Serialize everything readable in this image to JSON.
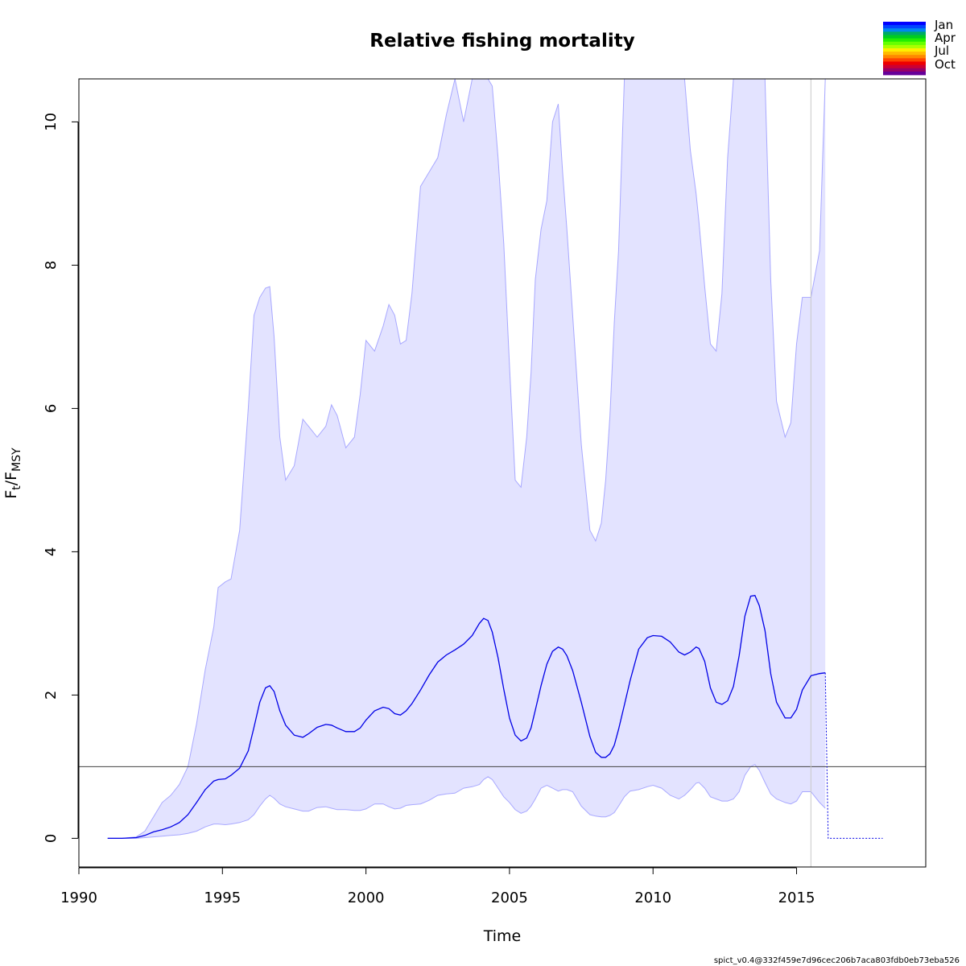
{
  "chart_data": {
    "type": "line",
    "title": "Relative fishing mortality",
    "xlabel": "Time",
    "ylabel": {
      "main": "F",
      "sub1": "t",
      "sep": "/F",
      "sub2": "MSY"
    },
    "xlim": [
      1990,
      2019.5
    ],
    "ylim": [
      -0.4,
      10.6
    ],
    "x_ticks": [
      1990,
      1995,
      2000,
      2005,
      2010,
      2015
    ],
    "y_ticks": [
      0,
      2,
      4,
      6,
      8,
      10
    ],
    "reference_line_y": 1,
    "vertical_line_x": 2015.5,
    "colors": {
      "estimate": "#0000e6",
      "ci_fill": "#e3e3ff",
      "ci_edge": "#a8a8ff",
      "reference": "#404040",
      "vline": "#c8c8c8"
    },
    "series": [
      {
        "role": "estimate",
        "x": [
          1991.0,
          1991.5,
          1992.0,
          1992.3,
          1992.6,
          1992.9,
          1993.2,
          1993.5,
          1993.8,
          1994.1,
          1994.4,
          1994.7,
          1994.85,
          1995.1,
          1995.3,
          1995.6,
          1995.9,
          1996.1,
          1996.3,
          1996.5,
          1996.65,
          1996.8,
          1997.0,
          1997.2,
          1997.5,
          1997.8,
          1998.0,
          1998.3,
          1998.6,
          1998.8,
          1999.0,
          1999.3,
          1999.6,
          1999.8,
          2000.0,
          2000.3,
          2000.6,
          2000.8,
          2001.0,
          2001.2,
          2001.4,
          2001.6,
          2001.9,
          2002.2,
          2002.5,
          2002.8,
          2003.1,
          2003.4,
          2003.7,
          2003.95,
          2004.1,
          2004.25,
          2004.4,
          2004.6,
          2004.8,
          2005.0,
          2005.2,
          2005.4,
          2005.6,
          2005.75,
          2005.9,
          2006.1,
          2006.3,
          2006.5,
          2006.7,
          2006.85,
          2007.0,
          2007.2,
          2007.5,
          2007.8,
          2008.0,
          2008.2,
          2008.35,
          2008.5,
          2008.65,
          2008.8,
          2009.0,
          2009.2,
          2009.5,
          2009.8,
          2010.0,
          2010.3,
          2010.6,
          2010.9,
          2011.1,
          2011.3,
          2011.5,
          2011.6,
          2011.8,
          2012.0,
          2012.2,
          2012.4,
          2012.6,
          2012.8,
          2013.0,
          2013.2,
          2013.4,
          2013.55,
          2013.7,
          2013.9,
          2014.1,
          2014.3,
          2014.6,
          2014.8,
          2015.0,
          2015.2,
          2015.5,
          2015.8,
          2016.0
        ],
        "y": [
          0.0,
          0.0,
          0.01,
          0.04,
          0.09,
          0.12,
          0.16,
          0.22,
          0.33,
          0.5,
          0.68,
          0.8,
          0.82,
          0.83,
          0.88,
          0.98,
          1.22,
          1.55,
          1.9,
          2.1,
          2.13,
          2.05,
          1.78,
          1.58,
          1.44,
          1.41,
          1.46,
          1.55,
          1.59,
          1.58,
          1.54,
          1.49,
          1.49,
          1.54,
          1.65,
          1.78,
          1.83,
          1.81,
          1.74,
          1.72,
          1.78,
          1.88,
          2.07,
          2.28,
          2.46,
          2.56,
          2.63,
          2.71,
          2.83,
          3.0,
          3.07,
          3.04,
          2.88,
          2.52,
          2.08,
          1.68,
          1.44,
          1.36,
          1.4,
          1.54,
          1.79,
          2.13,
          2.43,
          2.61,
          2.67,
          2.64,
          2.55,
          2.34,
          1.9,
          1.42,
          1.2,
          1.13,
          1.13,
          1.18,
          1.3,
          1.52,
          1.86,
          2.2,
          2.64,
          2.8,
          2.83,
          2.82,
          2.74,
          2.6,
          2.56,
          2.6,
          2.67,
          2.65,
          2.47,
          2.1,
          1.9,
          1.87,
          1.92,
          2.12,
          2.55,
          3.1,
          3.38,
          3.39,
          3.25,
          2.9,
          2.3,
          1.9,
          1.68,
          1.68,
          1.8,
          2.07,
          2.27,
          2.3,
          2.31
        ]
      },
      {
        "role": "upper_ci",
        "x": [
          1991.0,
          1991.5,
          1992.0,
          1992.3,
          1992.6,
          1992.9,
          1993.2,
          1993.5,
          1993.8,
          1994.1,
          1994.4,
          1994.7,
          1994.85,
          1995.1,
          1995.3,
          1995.6,
          1995.9,
          1996.1,
          1996.3,
          1996.5,
          1996.65,
          1996.8,
          1997.0,
          1997.2,
          1997.5,
          1997.8,
          1998.0,
          1998.3,
          1998.6,
          1998.8,
          1999.0,
          1999.3,
          1999.6,
          1999.8,
          2000.0,
          2000.3,
          2000.6,
          2000.8,
          2001.0,
          2001.2,
          2001.4,
          2001.6,
          2001.9,
          2002.2,
          2002.5,
          2002.8,
          2003.1,
          2003.4,
          2003.7,
          2003.95,
          2004.1,
          2004.25,
          2004.4,
          2004.6,
          2004.8,
          2005.0,
          2005.2,
          2005.4,
          2005.6,
          2005.75,
          2005.9,
          2006.1,
          2006.3,
          2006.5,
          2006.7,
          2006.85,
          2007.0,
          2007.2,
          2007.5,
          2007.8,
          2008.0,
          2008.2,
          2008.35,
          2008.5,
          2008.65,
          2008.8,
          2009.0,
          2009.2,
          2009.5,
          2009.8,
          2010.0,
          2010.3,
          2010.6,
          2010.9,
          2011.1,
          2011.3,
          2011.5,
          2011.6,
          2011.8,
          2012.0,
          2012.2,
          2012.4,
          2012.6,
          2012.8,
          2013.0,
          2013.2,
          2013.4,
          2013.55,
          2013.7,
          2013.9,
          2014.1,
          2014.3,
          2014.6,
          2014.8,
          2015.0,
          2015.2,
          2015.5,
          2015.8,
          2016.0
        ],
        "y": [
          0.0,
          0.0,
          0.02,
          0.1,
          0.3,
          0.5,
          0.6,
          0.75,
          1.0,
          1.6,
          2.35,
          2.95,
          3.5,
          3.58,
          3.62,
          4.3,
          6.0,
          7.3,
          7.55,
          7.68,
          7.7,
          7.0,
          5.6,
          5.0,
          5.2,
          5.85,
          5.75,
          5.6,
          5.75,
          6.05,
          5.9,
          5.45,
          5.6,
          6.2,
          6.95,
          6.8,
          7.15,
          7.45,
          7.3,
          6.9,
          6.95,
          7.6,
          9.1,
          9.3,
          9.5,
          10.1,
          10.6,
          10.0,
          10.6,
          10.6,
          10.6,
          10.6,
          10.5,
          9.5,
          8.3,
          6.6,
          5.0,
          4.9,
          5.6,
          6.5,
          7.8,
          8.5,
          8.9,
          10.0,
          10.25,
          9.3,
          8.5,
          7.3,
          5.5,
          4.3,
          4.15,
          4.4,
          5.0,
          5.9,
          7.2,
          8.2,
          10.6,
          10.6,
          10.6,
          10.6,
          10.6,
          10.6,
          10.6,
          10.6,
          10.6,
          9.6,
          9.0,
          8.6,
          7.7,
          6.9,
          6.8,
          7.6,
          9.5,
          10.6,
          10.6,
          10.6,
          10.6,
          10.6,
          10.6,
          10.6,
          7.8,
          6.1,
          5.6,
          5.8,
          6.9,
          7.55,
          7.55,
          8.2,
          10.6
        ]
      },
      {
        "role": "lower_ci",
        "x": [
          1991.0,
          1991.5,
          1992.0,
          1992.3,
          1992.6,
          1992.9,
          1993.2,
          1993.5,
          1993.8,
          1994.1,
          1994.4,
          1994.7,
          1994.85,
          1995.1,
          1995.3,
          1995.6,
          1995.9,
          1996.1,
          1996.3,
          1996.5,
          1996.65,
          1996.8,
          1997.0,
          1997.2,
          1997.5,
          1997.8,
          1998.0,
          1998.3,
          1998.6,
          1998.8,
          1999.0,
          1999.3,
          1999.6,
          1999.8,
          2000.0,
          2000.3,
          2000.6,
          2000.8,
          2001.0,
          2001.2,
          2001.4,
          2001.6,
          2001.9,
          2002.2,
          2002.5,
          2002.8,
          2003.1,
          2003.4,
          2003.7,
          2003.95,
          2004.1,
          2004.25,
          2004.4,
          2004.6,
          2004.8,
          2005.0,
          2005.2,
          2005.4,
          2005.6,
          2005.75,
          2005.9,
          2006.1,
          2006.3,
          2006.5,
          2006.7,
          2006.85,
          2007.0,
          2007.2,
          2007.5,
          2007.8,
          2008.0,
          2008.2,
          2008.35,
          2008.5,
          2008.65,
          2008.8,
          2009.0,
          2009.2,
          2009.5,
          2009.8,
          2010.0,
          2010.3,
          2010.6,
          2010.9,
          2011.1,
          2011.3,
          2011.5,
          2011.6,
          2011.8,
          2012.0,
          2012.2,
          2012.4,
          2012.6,
          2012.8,
          2013.0,
          2013.2,
          2013.4,
          2013.55,
          2013.7,
          2013.9,
          2014.1,
          2014.3,
          2014.6,
          2014.8,
          2015.0,
          2015.2,
          2015.5,
          2015.8,
          2016.0
        ],
        "y": [
          0.0,
          0.0,
          0.0,
          0.01,
          0.02,
          0.03,
          0.04,
          0.05,
          0.07,
          0.1,
          0.16,
          0.2,
          0.2,
          0.19,
          0.2,
          0.22,
          0.26,
          0.33,
          0.45,
          0.55,
          0.6,
          0.56,
          0.48,
          0.44,
          0.41,
          0.38,
          0.38,
          0.43,
          0.44,
          0.42,
          0.4,
          0.4,
          0.39,
          0.39,
          0.41,
          0.48,
          0.48,
          0.44,
          0.41,
          0.42,
          0.46,
          0.47,
          0.48,
          0.53,
          0.6,
          0.62,
          0.63,
          0.7,
          0.72,
          0.75,
          0.82,
          0.86,
          0.82,
          0.7,
          0.58,
          0.5,
          0.4,
          0.35,
          0.38,
          0.45,
          0.55,
          0.7,
          0.74,
          0.7,
          0.66,
          0.68,
          0.68,
          0.65,
          0.45,
          0.33,
          0.31,
          0.3,
          0.3,
          0.32,
          0.36,
          0.45,
          0.58,
          0.66,
          0.68,
          0.72,
          0.74,
          0.7,
          0.6,
          0.55,
          0.6,
          0.68,
          0.77,
          0.78,
          0.7,
          0.58,
          0.55,
          0.52,
          0.52,
          0.55,
          0.65,
          0.88,
          1.0,
          1.03,
          0.95,
          0.78,
          0.62,
          0.55,
          0.5,
          0.48,
          0.52,
          0.65,
          0.65,
          0.5,
          0.42
        ]
      },
      {
        "role": "forecast",
        "x": [
          2016.0,
          2016.1,
          2018.0
        ],
        "y": [
          2.31,
          0.0,
          0.0
        ]
      }
    ],
    "legend": {
      "position": "top-right",
      "labels": [
        "Jan",
        "Apr",
        "Jul",
        "Oct"
      ],
      "colors": [
        "#0000ff",
        "#0044ff",
        "#0088ee",
        "#00aa66",
        "#00cc22",
        "#22ee00",
        "#66ff00",
        "#aaff00",
        "#ffee00",
        "#ffbb00",
        "#ff8800",
        "#ff4400",
        "#ee0000",
        "#cc0033",
        "#990066",
        "#660099"
      ]
    }
  },
  "footer": "spict_v0.4@332f459e7d96cec206b7aca803fdb0eb73eba526"
}
